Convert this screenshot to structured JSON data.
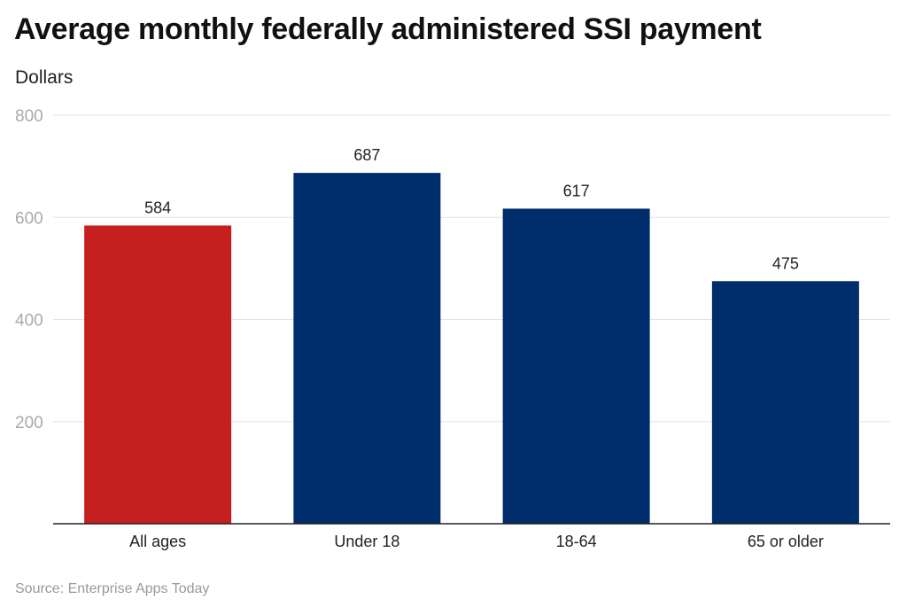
{
  "chart_data": {
    "type": "bar",
    "title": "Average monthly federally administered SSI payment",
    "subtitle": "Dollars",
    "source": "Source: Enterprise Apps Today",
    "categories": [
      "All ages",
      "Under 18",
      "18-64",
      "65 or older"
    ],
    "values": [
      584,
      687,
      617,
      475
    ],
    "colors": [
      "#c61f1f",
      "#002d6b",
      "#002d6b",
      "#002d6b"
    ],
    "ylim": [
      0,
      800
    ],
    "yticks": [
      200,
      400,
      600,
      800
    ],
    "grid": true,
    "xlabel": "",
    "ylabel": ""
  }
}
